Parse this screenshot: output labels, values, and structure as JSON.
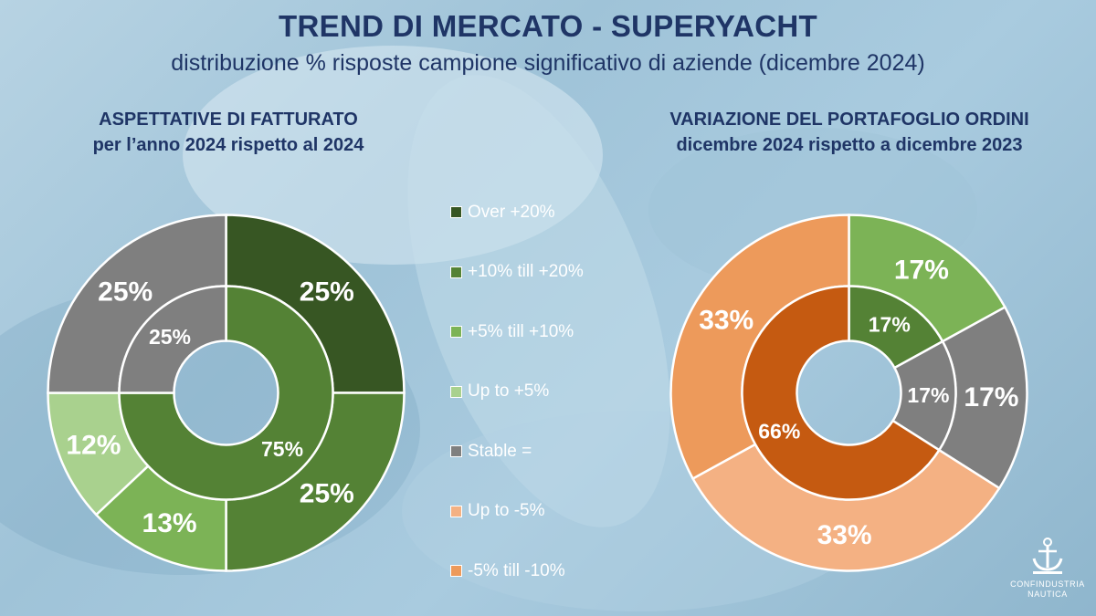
{
  "header": {
    "title": "TREND DI MERCATO - SUPERYACHT",
    "subtitle": "distribuzione % risposte campione significativo di aziende (dicembre 2024)"
  },
  "colors": {
    "over_20": "#375623",
    "p10_20": "#548235",
    "p5_10": "#7cb356",
    "up_to_5": "#a9d18e",
    "stable": "#7f7f7f",
    "up_to_minus5": "#f4b183",
    "minus5_10": "#ed9a5b",
    "orders_inner_down": "#c55a11",
    "title_text": "#1f3566"
  },
  "legend": {
    "items": [
      {
        "label": "Over +20%",
        "color": "#375623"
      },
      {
        "label": "+10% till +20%",
        "color": "#548235"
      },
      {
        "label": "+5% till +10%",
        "color": "#7cb356"
      },
      {
        "label": "Up to +5%",
        "color": "#a9d18e"
      },
      {
        "label": "Stable =",
        "color": "#7f7f7f"
      },
      {
        "label": "Up to -5%",
        "color": "#f4b183"
      },
      {
        "label": "-5% till -10%",
        "color": "#ed9a5b"
      }
    ]
  },
  "logo": {
    "line1": "CONFINDUSTRIA",
    "line2": "NAUTICA",
    "icon": "anchor-icon"
  },
  "chart_data": [
    {
      "type": "donut",
      "title": "ASPETTATIVE DI FATTURATO",
      "subtitle": "per l’anno 2024 rispetto al 2024",
      "outer_ring": [
        {
          "category": "Over +20%",
          "value": 25,
          "label": "25%",
          "color": "#375623"
        },
        {
          "category": "+10% till +20%",
          "value": 25,
          "label": "25%",
          "color": "#548235"
        },
        {
          "category": "+5% till +10%",
          "value": 13,
          "label": "13%",
          "color": "#7cb356"
        },
        {
          "category": "Up to +5%",
          "value": 12,
          "label": "12%",
          "color": "#a9d18e"
        },
        {
          "category": "Stable =",
          "value": 25,
          "label": "25%",
          "color": "#7f7f7f"
        }
      ],
      "inner_ring": [
        {
          "value": 75,
          "label": "75%",
          "color": "#548235"
        },
        {
          "value": 25,
          "label": "25%",
          "color": "#7f7f7f"
        }
      ]
    },
    {
      "type": "donut",
      "title": "VARIAZIONE DEL PORTAFOGLIO ORDINI",
      "subtitle": "dicembre 2024 rispetto a dicembre 2023",
      "outer_ring": [
        {
          "category": "+5% till +10%",
          "value": 17,
          "label": "17%",
          "color": "#7cb356"
        },
        {
          "category": "Stable =",
          "value": 17,
          "label": "17%",
          "color": "#7f7f7f"
        },
        {
          "category": "Up to -5%",
          "value": 33,
          "label": "33%",
          "color": "#f4b183"
        },
        {
          "category": "-5% till -10%",
          "value": 33,
          "label": "33%",
          "color": "#ed9a5b"
        }
      ],
      "inner_ring": [
        {
          "value": 17,
          "label": "17%",
          "color": "#548235"
        },
        {
          "value": 17,
          "label": "17%",
          "color": "#7f7f7f"
        },
        {
          "value": 66,
          "label": "66%",
          "color": "#c55a11"
        }
      ]
    }
  ]
}
